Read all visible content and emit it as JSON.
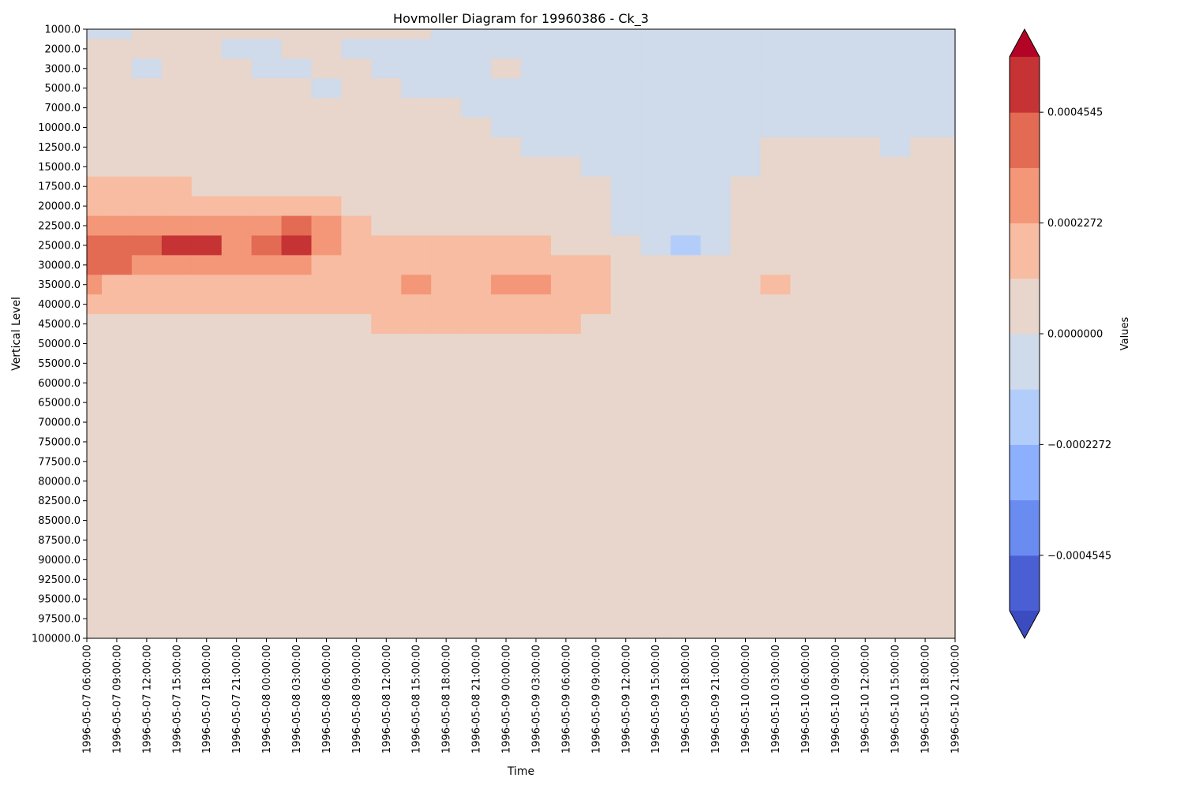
{
  "chart_data": {
    "type": "heatmap",
    "title": "Hovmoller Diagram for 19960386 - Ck_3",
    "xlabel": "Time",
    "ylabel": "Vertical Level",
    "x": [
      "1996-05-07 06:00:00",
      "1996-05-07 09:00:00",
      "1996-05-07 12:00:00",
      "1996-05-07 15:00:00",
      "1996-05-07 18:00:00",
      "1996-05-07 21:00:00",
      "1996-05-08 00:00:00",
      "1996-05-08 03:00:00",
      "1996-05-08 06:00:00",
      "1996-05-08 09:00:00",
      "1996-05-08 12:00:00",
      "1996-05-08 15:00:00",
      "1996-05-08 18:00:00",
      "1996-05-08 21:00:00",
      "1996-05-09 00:00:00",
      "1996-05-09 03:00:00",
      "1996-05-09 06:00:00",
      "1996-05-09 09:00:00",
      "1996-05-09 12:00:00",
      "1996-05-09 15:00:00",
      "1996-05-09 18:00:00",
      "1996-05-09 21:00:00",
      "1996-05-10 00:00:00",
      "1996-05-10 03:00:00",
      "1996-05-10 06:00:00",
      "1996-05-10 09:00:00",
      "1996-05-10 12:00:00",
      "1996-05-10 15:00:00",
      "1996-05-10 18:00:00",
      "1996-05-10 21:00:00"
    ],
    "y": [
      "1000.0",
      "2000.0",
      "3000.0",
      "5000.0",
      "7000.0",
      "10000.0",
      "12500.0",
      "15000.0",
      "17500.0",
      "20000.0",
      "22500.0",
      "25000.0",
      "30000.0",
      "35000.0",
      "40000.0",
      "45000.0",
      "50000.0",
      "55000.0",
      "60000.0",
      "65000.0",
      "70000.0",
      "75000.0",
      "77500.0",
      "80000.0",
      "82500.0",
      "85000.0",
      "87500.0",
      "90000.0",
      "92500.0",
      "95000.0",
      "97500.0",
      "100000.0"
    ],
    "colorbar": {
      "label": "Values",
      "ticks": [
        "0.0004545",
        "0.0002272",
        "0.0000000",
        "−0.0002272",
        "−0.0004545"
      ],
      "tick_values": [
        0.0004545,
        0.0002272,
        0.0,
        -0.0002272,
        -0.0004545
      ],
      "range": [
        -0.0005681,
        0.0005681
      ],
      "extend": "both",
      "colors_bottom_to_top": [
        "#3b4cc0",
        "#4b5fd5",
        "#6a8bef",
        "#8db0fe",
        "#b3cdfb",
        "#cfdaea",
        "#e8d6cc",
        "#f7bca1",
        "#f39778",
        "#e36a53",
        "#c53334",
        "#b40426"
      ]
    },
    "z": [
      [
        -1,
        -1,
        0,
        0,
        0,
        0,
        0,
        0,
        0,
        0,
        0,
        0,
        -1,
        -1,
        -1,
        -1,
        -1,
        -1,
        -1,
        -1,
        -1,
        -1,
        -1,
        -1,
        -1,
        -1,
        -1,
        -1,
        -1,
        -1
      ],
      [
        0,
        0,
        0,
        0,
        0,
        -1,
        -1,
        0,
        0,
        -1,
        -1,
        -1,
        -1,
        -1,
        -1,
        -1,
        -1,
        -1,
        -1,
        -1,
        -1,
        -1,
        -1,
        -1,
        -1,
        -1,
        -1,
        -1,
        -1,
        -1
      ],
      [
        0,
        0,
        -1,
        0,
        0,
        0,
        -1,
        -1,
        0,
        0,
        -1,
        -1,
        -1,
        -1,
        0,
        -1,
        -1,
        -1,
        -1,
        -1,
        -1,
        -1,
        -1,
        -1,
        -1,
        -1,
        -1,
        -1,
        -1,
        -1
      ],
      [
        0,
        0,
        0,
        0,
        0,
        0,
        0,
        0,
        -1,
        0,
        0,
        -1,
        -1,
        -1,
        -1,
        -1,
        -1,
        -1,
        -1,
        -1,
        -1,
        -1,
        -1,
        -1,
        -1,
        -1,
        -1,
        -1,
        -1,
        -1
      ],
      [
        0,
        0,
        0,
        0,
        0,
        0,
        0,
        0,
        0,
        0,
        0,
        0,
        0,
        -1,
        -1,
        -1,
        -1,
        -1,
        -1,
        -1,
        -1,
        -1,
        -1,
        -1,
        -1,
        -1,
        -1,
        -1,
        -1,
        -1
      ],
      [
        0,
        0,
        0,
        0,
        0,
        0,
        0,
        0,
        0,
        0,
        0,
        0,
        0,
        0,
        -1,
        -1,
        -1,
        -1,
        -1,
        -1,
        -1,
        -1,
        -1,
        -1,
        -1,
        -1,
        -1,
        -1,
        -1,
        -1
      ],
      [
        0,
        0,
        0,
        0,
        0,
        0,
        0,
        0,
        0,
        0,
        0,
        0,
        0,
        0,
        0,
        -1,
        -1,
        -1,
        -1,
        -1,
        -1,
        -1,
        -1,
        0,
        0,
        0,
        0,
        -1,
        0,
        0
      ],
      [
        0,
        0,
        0,
        0,
        0,
        0,
        0,
        0,
        0,
        0,
        0,
        0,
        0,
        0,
        0,
        0,
        0,
        -1,
        -1,
        -1,
        -1,
        -1,
        -1,
        0,
        0,
        0,
        0,
        0,
        0,
        0
      ],
      [
        1,
        1,
        1,
        1,
        0,
        0,
        0,
        0,
        0,
        0,
        0,
        0,
        0,
        0,
        0,
        0,
        0,
        0,
        -1,
        -1,
        -1,
        -1,
        0,
        0,
        0,
        0,
        0,
        0,
        0,
        0
      ],
      [
        1,
        1,
        1,
        1,
        1,
        1,
        1,
        1,
        1,
        0,
        0,
        0,
        0,
        0,
        0,
        0,
        0,
        0,
        -1,
        -1,
        -1,
        -1,
        0,
        0,
        0,
        0,
        0,
        0,
        0,
        0
      ],
      [
        2,
        2,
        2,
        2,
        2,
        2,
        2,
        3,
        2,
        1,
        0,
        0,
        0,
        0,
        0,
        0,
        0,
        0,
        -1,
        -1,
        -1,
        -1,
        0,
        0,
        0,
        0,
        0,
        0,
        0,
        0
      ],
      [
        3,
        3,
        3,
        4,
        4,
        2,
        3,
        4,
        2,
        1,
        1,
        1,
        1,
        1,
        1,
        1,
        0,
        0,
        0,
        -1,
        -2,
        -1,
        0,
        0,
        0,
        0,
        0,
        0,
        0,
        0
      ],
      [
        3,
        3,
        2,
        2,
        2,
        2,
        2,
        2,
        1,
        1,
        1,
        1,
        1,
        1,
        1,
        1,
        1,
        1,
        0,
        0,
        0,
        0,
        0,
        0,
        0,
        0,
        0,
        0,
        0,
        0
      ],
      [
        2,
        1,
        1,
        1,
        1,
        1,
        1,
        1,
        1,
        1,
        1,
        2,
        1,
        1,
        2,
        2,
        1,
        1,
        0,
        0,
        0,
        0,
        0,
        1,
        0,
        0,
        0,
        0,
        0,
        0
      ],
      [
        1,
        1,
        1,
        1,
        1,
        1,
        1,
        1,
        1,
        1,
        1,
        1,
        1,
        1,
        1,
        1,
        1,
        1,
        0,
        0,
        0,
        0,
        0,
        0,
        0,
        0,
        0,
        0,
        0,
        0
      ],
      [
        0,
        0,
        0,
        0,
        0,
        0,
        0,
        0,
        0,
        0,
        1,
        1,
        1,
        1,
        1,
        1,
        1,
        0,
        0,
        0,
        0,
        0,
        0,
        0,
        0,
        0,
        0,
        0,
        0,
        0
      ],
      [
        0,
        0,
        0,
        0,
        0,
        0,
        0,
        0,
        0,
        0,
        0,
        0,
        0,
        0,
        0,
        0,
        0,
        0,
        0,
        0,
        0,
        0,
        0,
        0,
        0,
        0,
        0,
        0,
        0,
        0
      ],
      [
        0,
        0,
        0,
        0,
        0,
        0,
        0,
        0,
        0,
        0,
        0,
        0,
        0,
        0,
        0,
        0,
        0,
        0,
        0,
        0,
        0,
        0,
        0,
        0,
        0,
        0,
        0,
        0,
        0,
        0
      ],
      [
        0,
        0,
        0,
        0,
        0,
        0,
        0,
        0,
        0,
        0,
        0,
        0,
        0,
        0,
        0,
        0,
        0,
        0,
        0,
        0,
        0,
        0,
        0,
        0,
        0,
        0,
        0,
        0,
        0,
        0
      ],
      [
        0,
        0,
        0,
        0,
        0,
        0,
        0,
        0,
        0,
        0,
        0,
        0,
        0,
        0,
        0,
        0,
        0,
        0,
        0,
        0,
        0,
        0,
        0,
        0,
        0,
        0,
        0,
        0,
        0,
        0
      ],
      [
        0,
        0,
        0,
        0,
        0,
        0,
        0,
        0,
        0,
        0,
        0,
        0,
        0,
        0,
        0,
        0,
        0,
        0,
        0,
        0,
        0,
        0,
        0,
        0,
        0,
        0,
        0,
        0,
        0,
        0
      ],
      [
        0,
        0,
        0,
        0,
        0,
        0,
        0,
        0,
        0,
        0,
        0,
        0,
        0,
        0,
        0,
        0,
        0,
        0,
        0,
        0,
        0,
        0,
        0,
        0,
        0,
        0,
        0,
        0,
        0,
        0
      ],
      [
        0,
        0,
        0,
        0,
        0,
        0,
        0,
        0,
        0,
        0,
        0,
        0,
        0,
        0,
        0,
        0,
        0,
        0,
        0,
        0,
        0,
        0,
        0,
        0,
        0,
        0,
        0,
        0,
        0,
        0
      ],
      [
        0,
        0,
        0,
        0,
        0,
        0,
        0,
        0,
        0,
        0,
        0,
        0,
        0,
        0,
        0,
        0,
        0,
        0,
        0,
        0,
        0,
        0,
        0,
        0,
        0,
        0,
        0,
        0,
        0,
        0
      ],
      [
        0,
        0,
        0,
        0,
        0,
        0,
        0,
        0,
        0,
        0,
        0,
        0,
        0,
        0,
        0,
        0,
        0,
        0,
        0,
        0,
        0,
        0,
        0,
        0,
        0,
        0,
        0,
        0,
        0,
        0
      ],
      [
        0,
        0,
        0,
        0,
        0,
        0,
        0,
        0,
        0,
        0,
        0,
        0,
        0,
        0,
        0,
        0,
        0,
        0,
        0,
        0,
        0,
        0,
        0,
        0,
        0,
        0,
        0,
        0,
        0,
        0
      ],
      [
        0,
        0,
        0,
        0,
        0,
        0,
        0,
        0,
        0,
        0,
        0,
        0,
        0,
        0,
        0,
        0,
        0,
        0,
        0,
        0,
        0,
        0,
        0,
        0,
        0,
        0,
        0,
        0,
        0,
        0
      ],
      [
        0,
        0,
        0,
        0,
        0,
        0,
        0,
        0,
        0,
        0,
        0,
        0,
        0,
        0,
        0,
        0,
        0,
        0,
        0,
        0,
        0,
        0,
        0,
        0,
        0,
        0,
        0,
        0,
        0,
        0
      ],
      [
        0,
        0,
        0,
        0,
        0,
        0,
        0,
        0,
        0,
        0,
        0,
        0,
        0,
        0,
        0,
        0,
        0,
        0,
        0,
        0,
        0,
        0,
        0,
        0,
        0,
        0,
        0,
        0,
        0,
        0
      ],
      [
        0,
        0,
        0,
        0,
        0,
        0,
        0,
        0,
        0,
        0,
        0,
        0,
        0,
        0,
        0,
        0,
        0,
        0,
        0,
        0,
        0,
        0,
        0,
        0,
        0,
        0,
        0,
        0,
        0,
        0
      ],
      [
        0,
        0,
        0,
        0,
        0,
        0,
        0,
        0,
        0,
        0,
        0,
        0,
        0,
        0,
        0,
        0,
        0,
        0,
        0,
        0,
        0,
        0,
        0,
        0,
        0,
        0,
        0,
        0,
        0,
        0
      ],
      [
        0,
        0,
        0,
        0,
        0,
        0,
        0,
        0,
        0,
        0,
        0,
        0,
        0,
        0,
        0,
        0,
        0,
        0,
        0,
        0,
        0,
        0,
        0,
        0,
        0,
        0,
        0,
        0,
        0,
        0
      ]
    ],
    "band_colors": {
      "-2": "#b3cdfb",
      "-1": "#cfdaea",
      "0": "#e8d6cc",
      "1": "#f7bca1",
      "2": "#f39778",
      "3": "#e36a53",
      "4": "#c53334"
    },
    "grid": false,
    "legend": "colorbar-right"
  }
}
